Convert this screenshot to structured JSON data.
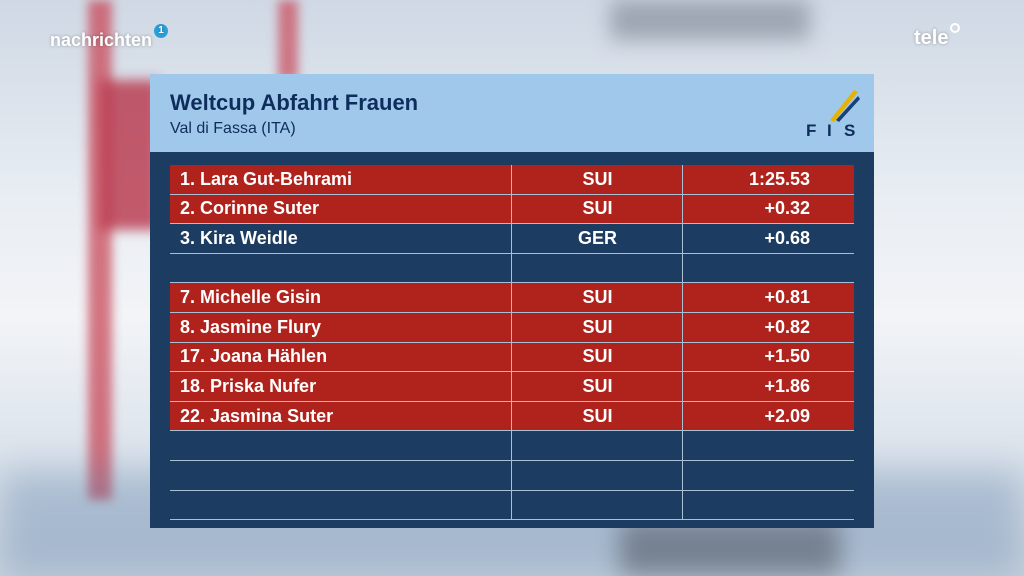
{
  "branding": {
    "left_logo": "nachrichten",
    "left_badge": "1",
    "right_logo": "tele"
  },
  "panel": {
    "title": "Weltcup Abfahrt Frauen",
    "subtitle": "Val di Fassa (ITA)",
    "fis_letters": [
      "F",
      "I",
      "S"
    ]
  },
  "results": [
    {
      "name": "1. Lara Gut-Behrami",
      "nation": "SUI",
      "time": "1:25.53",
      "highlighted": true
    },
    {
      "name": "2. Corinne Suter",
      "nation": "SUI",
      "time": "+0.32",
      "highlighted": true
    },
    {
      "name": "3. Kira Weidle",
      "nation": "GER",
      "time": "+0.68",
      "highlighted": false
    },
    {
      "name": "",
      "nation": "",
      "time": "",
      "highlighted": false
    },
    {
      "name": "7. Michelle Gisin",
      "nation": "SUI",
      "time": "+0.81",
      "highlighted": true
    },
    {
      "name": "8. Jasmine Flury",
      "nation": "SUI",
      "time": "+0.82",
      "highlighted": true
    },
    {
      "name": "17. Joana Hählen",
      "nation": "SUI",
      "time": "+1.50",
      "highlighted": true
    },
    {
      "name": "18. Priska Nufer",
      "nation": "SUI",
      "time": "+1.86",
      "highlighted": true
    },
    {
      "name": "22. Jasmina Suter",
      "nation": "SUI",
      "time": "+2.09",
      "highlighted": true
    },
    {
      "name": "",
      "nation": "",
      "time": "",
      "highlighted": false
    },
    {
      "name": "",
      "nation": "",
      "time": "",
      "highlighted": false
    },
    {
      "name": "",
      "nation": "",
      "time": "",
      "highlighted": false
    }
  ],
  "colors": {
    "highlight_row": "#b0221c",
    "panel_bg": "#1d3c61",
    "header_bg": "#9fc8ea"
  }
}
